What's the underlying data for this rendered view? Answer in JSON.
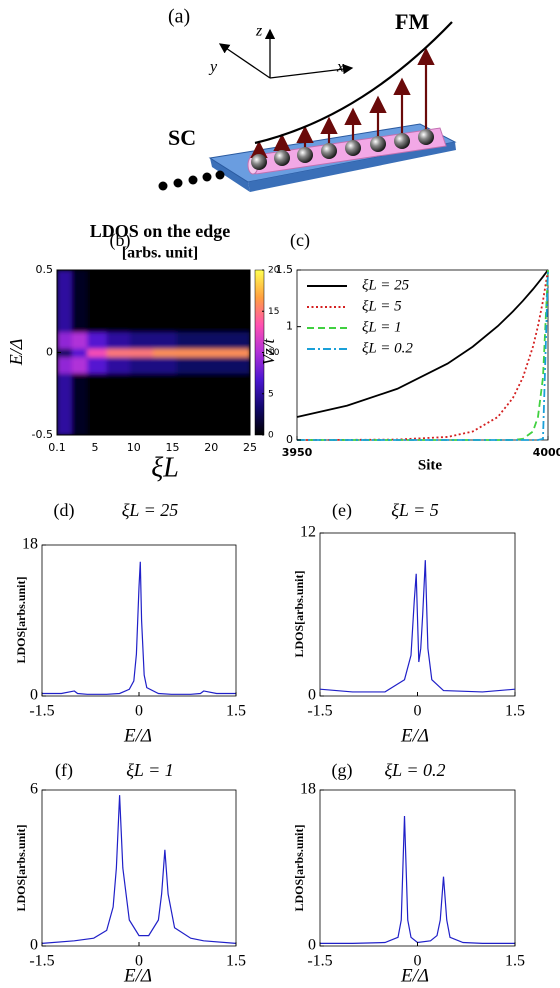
{
  "figure_a": {
    "label": "(a)",
    "axis_z": "z",
    "axis_y": "y",
    "axis_x": "x",
    "fm": "FM",
    "sc": "SC"
  },
  "chart_data": [
    {
      "type": "heatmap",
      "label": "(b)",
      "title": "LDOS on the edge",
      "subtitle": "[arbs. unit]",
      "xlabel": "ξL",
      "ylabel": "E/Δ",
      "x": [
        1,
        3,
        5,
        8,
        11,
        14,
        17,
        20,
        23
      ],
      "y": [
        -0.4,
        -0.2,
        -0.05,
        0,
        0.05,
        0.2,
        0.4
      ],
      "z": [
        [
          5,
          1,
          0,
          0,
          0,
          0,
          0,
          0,
          0
        ],
        [
          5,
          1,
          0,
          0,
          0,
          0,
          0,
          0,
          0
        ],
        [
          9,
          10,
          7,
          5,
          4,
          4,
          3,
          3,
          3
        ],
        [
          3,
          7,
          13,
          15,
          15,
          16,
          16,
          16,
          16
        ],
        [
          9,
          10,
          7,
          5,
          4,
          4,
          3,
          3,
          3
        ],
        [
          5,
          1,
          0,
          0,
          0,
          0,
          0,
          0,
          0
        ],
        [
          5,
          1,
          0,
          0,
          0,
          0,
          0,
          0,
          0
        ]
      ],
      "xlim": [
        0.1,
        25
      ],
      "xticks": [
        0.1,
        5,
        10,
        15,
        20,
        25
      ],
      "ylim": [
        -0.5,
        0.5
      ],
      "yticks": [
        -0.5,
        0,
        0.5
      ],
      "clim": [
        0,
        20
      ],
      "cticks": [
        0,
        5,
        10,
        15,
        20
      ],
      "colormap": [
        "#000000",
        "#12086e",
        "#4a16d0",
        "#b030d8",
        "#ff50b0",
        "#ffa040",
        "#ffff50"
      ]
    },
    {
      "type": "line",
      "label": "(c)",
      "xlabel": "Site",
      "ylabel": "Vz/t",
      "x": [
        3950,
        3960,
        3970,
        3980,
        3985,
        3990,
        3993,
        3995,
        3997,
        3998,
        3999,
        4000
      ],
      "xlim": [
        3950,
        4000
      ],
      "xticks": [
        3950,
        4000
      ],
      "ylim": [
        0,
        1.5
      ],
      "yticks": [
        0,
        1,
        1.5
      ],
      "legend": "upper left",
      "series": [
        {
          "name": "ξL = 25",
          "color": "#000000",
          "style": "solid",
          "values": [
            0.203,
            0.303,
            0.452,
            0.674,
            0.823,
            1.005,
            1.134,
            1.228,
            1.33,
            1.385,
            1.441,
            1.5
          ]
        },
        {
          "name": "ξL = 5",
          "color": "#d42020",
          "style": "dotted",
          "values": [
            0,
            0.001,
            0.004,
            0.027,
            0.075,
            0.203,
            0.37,
            0.552,
            0.823,
            1.005,
            1.228,
            1.5
          ]
        },
        {
          "name": "ξL = 1",
          "color": "#40d040",
          "style": "dashed",
          "values": [
            0,
            0,
            0,
            0,
            0,
            0,
            0.001,
            0.01,
            0.075,
            0.203,
            0.552,
            1.5
          ]
        },
        {
          "name": "ξL = 0.2",
          "color": "#1aa0d8",
          "style": "dashdot",
          "values": [
            0,
            0,
            0,
            0,
            0,
            0,
            0,
            0,
            0,
            0,
            0.01,
            1.5
          ]
        }
      ]
    },
    {
      "type": "line",
      "label": "(d)",
      "title": "ξL = 25",
      "xlabel": "E/Δ",
      "ylabel": "LDOS[arbs.unit]",
      "x": [
        -1.5,
        -1.2,
        -1.0,
        -0.95,
        -0.8,
        -0.5,
        -0.3,
        -0.15,
        -0.08,
        -0.04,
        0,
        0.02,
        0.04,
        0.08,
        0.12,
        0.3,
        0.5,
        0.8,
        0.95,
        1.0,
        1.2,
        1.5
      ],
      "xlim": [
        -1.5,
        1.5
      ],
      "xticks": [
        -1.5,
        0,
        1.5
      ],
      "ylim": [
        0,
        18
      ],
      "yticks": [
        0,
        18
      ],
      "series": [
        {
          "color": "#2020c8",
          "style": "solid",
          "values": [
            0.3,
            0.3,
            0.6,
            0.3,
            0.2,
            0.2,
            0.3,
            0.8,
            1.8,
            5,
            13,
            16,
            9,
            2.5,
            1,
            0.3,
            0.2,
            0.2,
            0.3,
            0.6,
            0.3,
            0.3
          ]
        }
      ]
    },
    {
      "type": "line",
      "label": "(e)",
      "title": "ξL = 5",
      "xlabel": "E/Δ",
      "ylabel": "LDOS[arbs.unit]",
      "x": [
        -1.5,
        -1.0,
        -0.5,
        -0.2,
        -0.1,
        -0.05,
        -0.02,
        0.02,
        0.05,
        0.08,
        0.12,
        0.16,
        0.22,
        0.4,
        1.0,
        1.5
      ],
      "xlim": [
        -1.5,
        1.5
      ],
      "xticks": [
        -1.5,
        0,
        1.5
      ],
      "ylim": [
        0,
        12
      ],
      "yticks": [
        0,
        12
      ],
      "series": [
        {
          "color": "#2020c8",
          "style": "solid",
          "values": [
            0.5,
            0.3,
            0.3,
            1.2,
            3,
            7,
            9,
            2.5,
            3.5,
            6,
            10,
            3.5,
            1.2,
            0.4,
            0.3,
            0.5
          ]
        }
      ]
    },
    {
      "type": "line",
      "label": "(f)",
      "title": "ξL = 1",
      "xlabel": "E/Δ",
      "ylabel": "LDOS[arbs.unit]",
      "x": [
        -1.5,
        -1.0,
        -0.7,
        -0.5,
        -0.4,
        -0.35,
        -0.3,
        -0.25,
        -0.15,
        0,
        0.15,
        0.3,
        0.35,
        0.4,
        0.45,
        0.55,
        0.8,
        1.0,
        1.5
      ],
      "xlim": [
        -1.5,
        1.5
      ],
      "xticks": [
        -1.5,
        0,
        1.5
      ],
      "ylim": [
        0,
        6
      ],
      "yticks": [
        0,
        6
      ],
      "series": [
        {
          "color": "#2020c8",
          "style": "solid",
          "values": [
            0.1,
            0.2,
            0.3,
            0.6,
            1.5,
            3,
            5.8,
            3,
            1,
            0.4,
            0.4,
            1,
            2,
            3.7,
            2,
            0.7,
            0.3,
            0.2,
            0.1
          ]
        }
      ]
    },
    {
      "type": "line",
      "label": "(g)",
      "title": "ξL = 0.2",
      "xlabel": "E/Δ",
      "ylabel": "LDOS[arbs.unit]",
      "x": [
        -1.5,
        -1.0,
        -0.5,
        -0.3,
        -0.25,
        -0.2,
        -0.15,
        -0.1,
        0,
        0.2,
        0.3,
        0.35,
        0.4,
        0.45,
        0.5,
        0.7,
        1.0,
        1.5
      ],
      "xlim": [
        -1.5,
        1.5
      ],
      "xticks": [
        -1.5,
        0,
        1.5
      ],
      "ylim": [
        0,
        18
      ],
      "yticks": [
        0,
        18
      ],
      "series": [
        {
          "color": "#2020c8",
          "style": "solid",
          "values": [
            0.3,
            0.3,
            0.4,
            1,
            3,
            15,
            3,
            1,
            0.4,
            0.6,
            1.2,
            3,
            8,
            3,
            1,
            0.4,
            0.3,
            0.3
          ]
        }
      ]
    }
  ]
}
